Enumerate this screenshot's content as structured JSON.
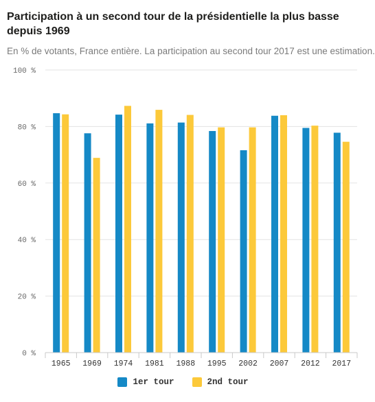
{
  "title": "Participation à un second tour de la présidentielle la plus basse depuis 1969",
  "subtitle": "En % de votants, France entière. La participation au second tour 2017 est une estimation.",
  "colors": {
    "series_1": "#1589c6",
    "series_2": "#fcc93a",
    "grid": "#e3e3e3",
    "axis": "#c9c9c9"
  },
  "chart_data": {
    "type": "bar",
    "title": "Participation à un second tour de la présidentielle la plus basse depuis 1969",
    "subtitle": "En % de votants, France entière. La participation au second tour 2017 est une estimation.",
    "xlabel": "",
    "ylabel": "",
    "categories": [
      "1965",
      "1969",
      "1974",
      "1981",
      "1988",
      "1995",
      "2002",
      "2007",
      "2012",
      "2017"
    ],
    "series": [
      {
        "name": "1er tour",
        "values": [
          84.7,
          77.6,
          84.2,
          81.1,
          81.4,
          78.4,
          71.6,
          83.8,
          79.5,
          77.8
        ]
      },
      {
        "name": "2nd tour",
        "values": [
          84.3,
          68.9,
          87.3,
          85.9,
          84.1,
          79.7,
          79.7,
          84.0,
          80.3,
          74.6
        ]
      }
    ],
    "ylim": [
      0,
      100
    ],
    "yticks": [
      0,
      20,
      40,
      60,
      80,
      100
    ],
    "ytick_labels": [
      "0 %",
      "20 %",
      "40 %",
      "60 %",
      "80 %",
      "100 %"
    ],
    "grid": true,
    "legend_position": "bottom-center"
  },
  "legend": {
    "items": [
      {
        "label": "1er tour"
      },
      {
        "label": "2nd tour"
      }
    ]
  }
}
